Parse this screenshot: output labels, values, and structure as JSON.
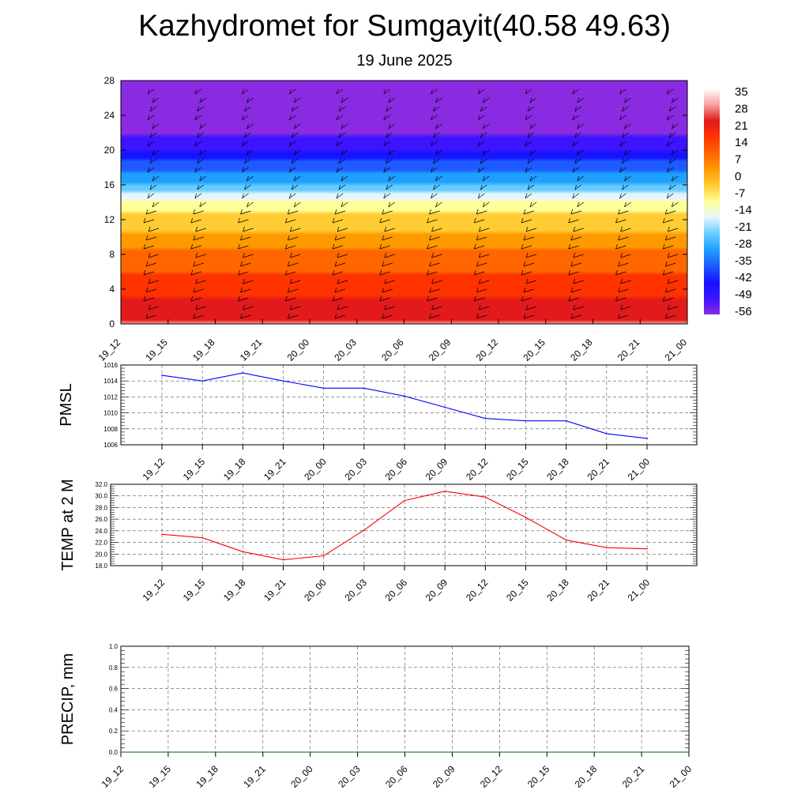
{
  "title": "Kazhydromet for Sumgayit(40.58 49.63)",
  "subtitle": "19 June 2025",
  "time_labels": [
    "19_12",
    "19_15",
    "19_18",
    "19_21",
    "20_00",
    "20_03",
    "20_06",
    "20_09",
    "20_12",
    "20_15",
    "20_18",
    "20_21",
    "21_00"
  ],
  "chart_data": [
    {
      "type": "heatmap",
      "title": "",
      "ylabel": "",
      "yticks": [
        "0",
        "4",
        "8",
        "12",
        "16",
        "20",
        "24",
        "28"
      ],
      "ylim": [
        0,
        28
      ],
      "x": [
        "19_12",
        "19_15",
        "19_18",
        "19_21",
        "20_00",
        "20_03",
        "20_06",
        "20_09",
        "20_12",
        "20_15",
        "20_18",
        "20_21",
        "21_00"
      ],
      "colorbar": {
        "labels": [
          "35",
          "28",
          "21",
          "14",
          "7",
          "0",
          "-7",
          "-14",
          "-21",
          "-28",
          "-35",
          "-42",
          "-49",
          "-56"
        ],
        "colors": [
          "#ffffff",
          "#f9a0a0",
          "#e31a1c",
          "#ff3300",
          "#ff6600",
          "#ff9900",
          "#ffcc33",
          "#ffff99",
          "#e6f5ff",
          "#66ccff",
          "#1ea0ff",
          "#1e5aff",
          "#1414ff",
          "#3c14ff",
          "#8a2be2"
        ]
      },
      "profile": [
        {
          "height": 0,
          "value": 28
        },
        {
          "height": 8,
          "value": 7
        },
        {
          "height": 13.5,
          "value": -12
        },
        {
          "height": 16,
          "value": -30
        },
        {
          "height": 20,
          "value": -52
        },
        {
          "height": 22,
          "value": -60
        },
        {
          "height": 28,
          "value": -62
        }
      ]
    },
    {
      "type": "line",
      "ylabel": "PMSL",
      "ylim": [
        1006,
        1016
      ],
      "yticks": [
        "1006",
        "1008",
        "1010",
        "1012",
        "1014",
        "1016"
      ],
      "x": [
        "19_12",
        "19_15",
        "19_18",
        "19_21",
        "20_00",
        "20_03",
        "20_06",
        "20_09",
        "20_12",
        "20_15",
        "20_18",
        "20_21",
        "21_00"
      ],
      "series": [
        {
          "values": [
            1014.7,
            1014.0,
            1015.0,
            1014.0,
            1013.1,
            1013.1,
            1012.1,
            1010.7,
            1009.3,
            1009.0,
            1009.0,
            1007.4,
            1006.8
          ],
          "color": "#0000ff"
        }
      ]
    },
    {
      "type": "line",
      "ylabel": "TEMP at 2 M",
      "ylim": [
        18,
        32
      ],
      "yticks": [
        "18.0",
        "20.0",
        "22.0",
        "24.0",
        "26.0",
        "28.0",
        "30.0",
        "32.0"
      ],
      "x": [
        "19_12",
        "19_15",
        "19_18",
        "19_21",
        "20_00",
        "20_03",
        "20_06",
        "20_09",
        "20_12",
        "20_15",
        "20_18",
        "20_21",
        "21_00"
      ],
      "series": [
        {
          "values": [
            23.4,
            22.8,
            20.4,
            19.0,
            19.7,
            24.1,
            29.2,
            30.8,
            29.8,
            26.3,
            22.4,
            21.1,
            20.9
          ],
          "color": "#ff0000"
        }
      ]
    },
    {
      "type": "line",
      "ylabel": "PRECIP, mm",
      "ylim": [
        0,
        1
      ],
      "yticks": [
        "0.0",
        "0.2",
        "0.4",
        "0.6",
        "0.8",
        "1.0"
      ],
      "x": [
        "19_12",
        "19_15",
        "19_18",
        "19_21",
        "20_00",
        "20_03",
        "20_06",
        "20_09",
        "20_12",
        "20_15",
        "20_18",
        "20_21",
        "21_00"
      ],
      "series": [
        {
          "values": [
            0,
            0,
            0,
            0,
            0,
            0,
            0,
            0,
            0,
            0,
            0,
            0,
            0
          ],
          "color": "#006400"
        }
      ]
    }
  ]
}
